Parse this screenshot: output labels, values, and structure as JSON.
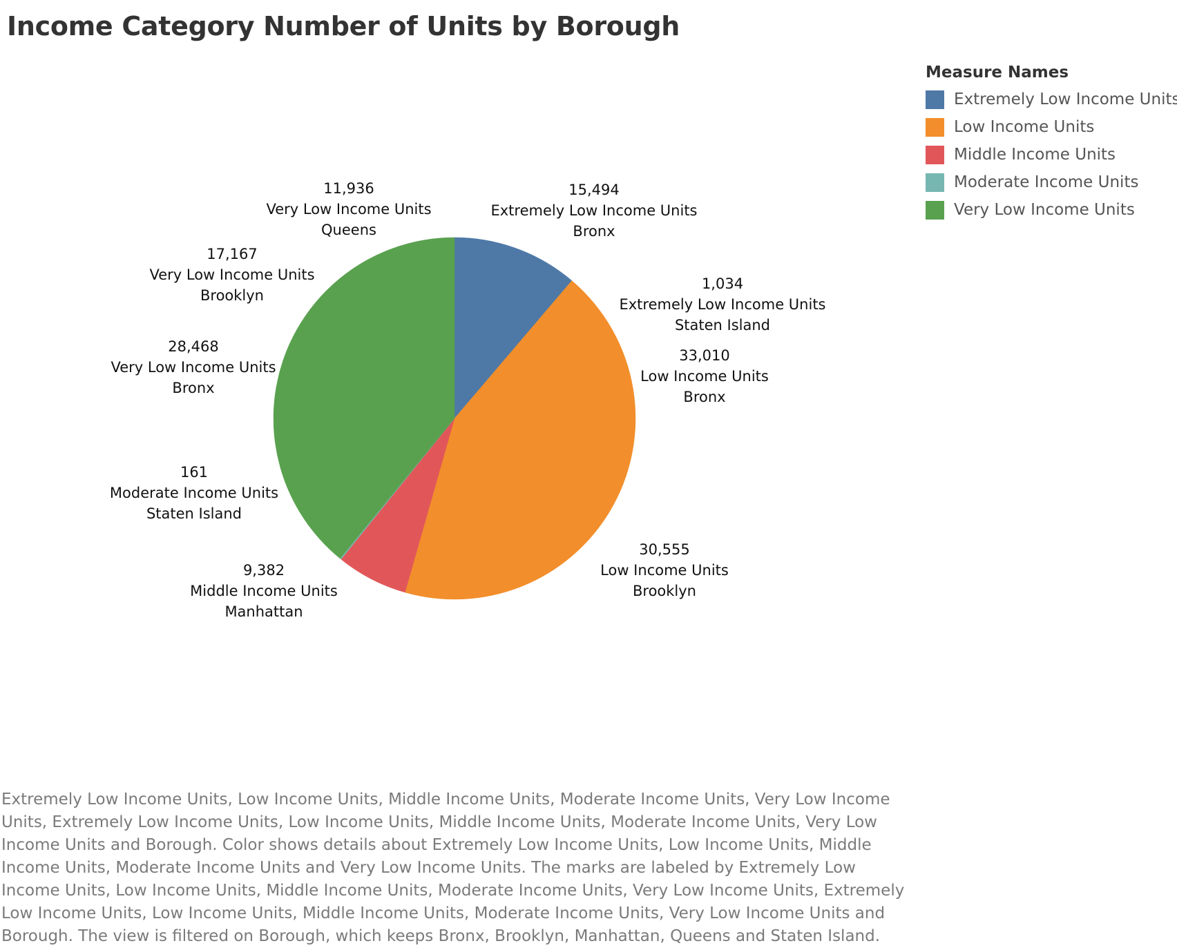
{
  "chart_data": {
    "type": "pie",
    "title": "Income Category Number of Units by Borough",
    "legend": {
      "title": "Measure Names",
      "placement": "top-right",
      "entries": [
        {
          "label": "Extremely Low Income Units",
          "color": "#4e79a7"
        },
        {
          "label": "Low Income Units",
          "color": "#f28e2b"
        },
        {
          "label": "Middle Income Units",
          "color": "#e15759"
        },
        {
          "label": "Moderate Income Units",
          "color": "#76b7b2"
        },
        {
          "label": "Very Low Income Units",
          "color": "#59a14f"
        }
      ]
    },
    "slices": [
      {
        "value": 15494,
        "value_label": "15,494",
        "measure": "Extremely Low Income Units",
        "borough": "Bronx",
        "color": "#4e79a7"
      },
      {
        "value": 1034,
        "value_label": "1,034",
        "measure": "Extremely Low Income Units",
        "borough": "Staten Island",
        "color": "#4e79a7"
      },
      {
        "value": 33010,
        "value_label": "33,010",
        "measure": "Low Income Units",
        "borough": "Bronx",
        "color": "#f28e2b"
      },
      {
        "value": 30555,
        "value_label": "30,555",
        "measure": "Low Income Units",
        "borough": "Brooklyn",
        "color": "#f28e2b"
      },
      {
        "value": 9382,
        "value_label": "9,382",
        "measure": "Middle Income Units",
        "borough": "Manhattan",
        "color": "#e15759"
      },
      {
        "value": 161,
        "value_label": "161",
        "measure": "Moderate Income Units",
        "borough": "Staten Island",
        "color": "#76b7b2"
      },
      {
        "value": 28468,
        "value_label": "28,468",
        "measure": "Very Low Income Units",
        "borough": "Bronx",
        "color": "#59a14f"
      },
      {
        "value": 17167,
        "value_label": "17,167",
        "measure": "Very Low Income Units",
        "borough": "Brooklyn",
        "color": "#59a14f"
      },
      {
        "value": 11936,
        "value_label": "11,936",
        "measure": "Very Low Income Units",
        "borough": "Queens",
        "color": "#59a14f"
      }
    ]
  },
  "caption": "Extremely Low Income Units, Low Income Units, Middle Income Units, Moderate Income Units, Very Low Income Units, Extremely Low Income Units, Low Income Units, Middle Income Units, Moderate Income Units, Very Low Income Units and Borough.  Color shows details about Extremely Low Income Units, Low Income Units, Middle Income Units, Moderate Income Units and Very Low Income Units.  The marks are labeled by Extremely Low Income Units, Low Income Units, Middle Income Units, Moderate Income Units, Very Low Income Units, Extremely Low Income Units, Low Income Units, Middle Income Units, Moderate Income Units, Very Low Income Units and Borough.  The view is filtered on Borough, which keeps Bronx, Brooklyn, Manhattan, Queens and Staten Island."
}
